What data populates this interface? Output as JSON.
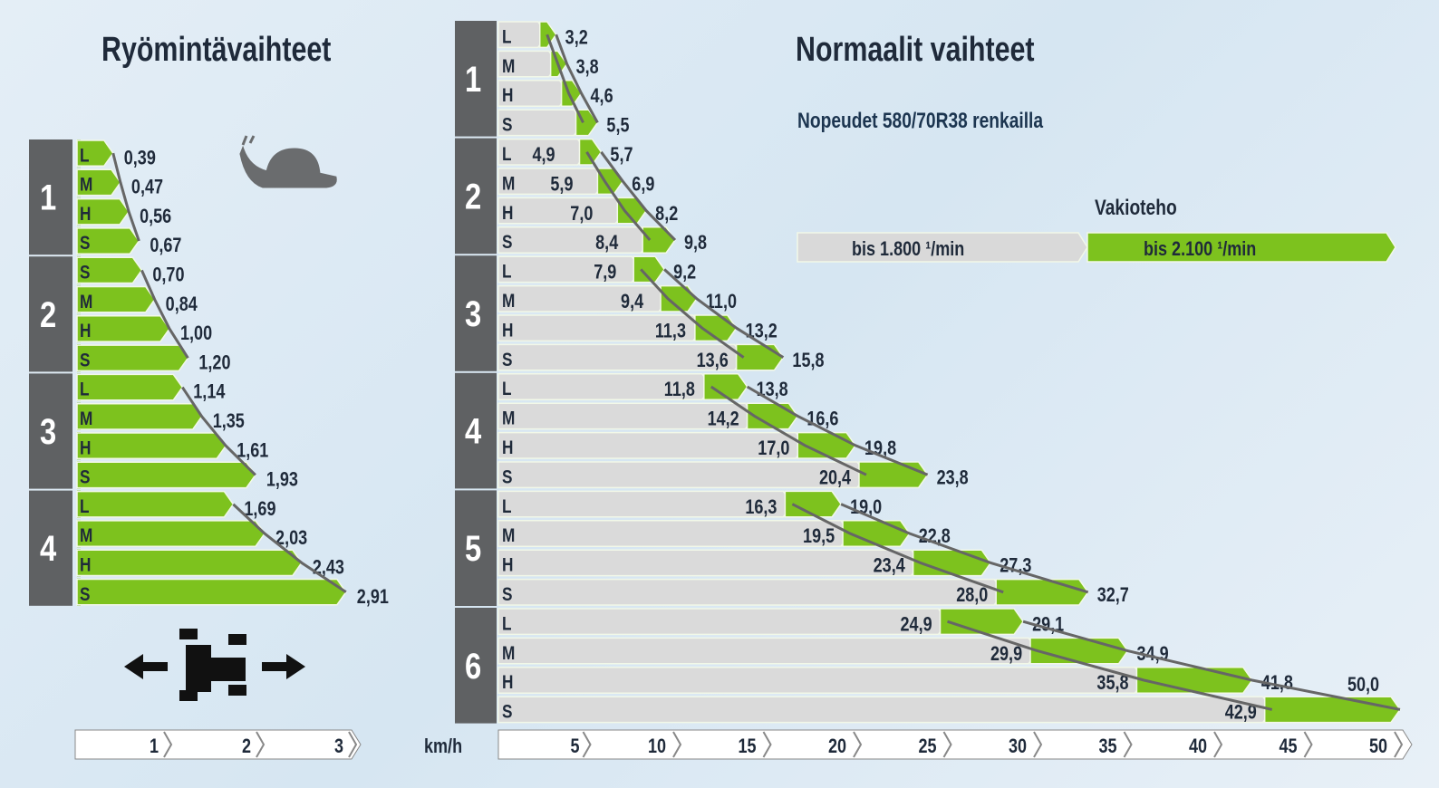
{
  "left_title": "Ryömintävaihteet",
  "right_title": "Normaalit vaihteet",
  "subtitle": "Nopeudet 580/70R38 renkailla",
  "legend": {
    "title": "Vakioteho",
    "items": [
      "bis 1.800 ¹/min",
      "bis 2.100 ¹/min"
    ],
    "colors": [
      "#d9d9d9",
      "#7dc21e"
    ]
  },
  "icons": [
    "snail-icon",
    "tractor-direction-icon"
  ],
  "chart_data": [
    {
      "type": "bar",
      "title": "Ryömintävaihteet",
      "groups": [
        "1",
        "2",
        "3",
        "4"
      ],
      "row_labels": [
        [
          "L",
          "M",
          "H",
          "S"
        ],
        [
          "S",
          "M",
          "H",
          "S"
        ],
        [
          "L",
          "M",
          "H",
          "S"
        ],
        [
          "L",
          "M",
          "H",
          "S"
        ]
      ],
      "values": [
        [
          0.39,
          0.47,
          0.56,
          0.67
        ],
        [
          0.7,
          0.84,
          1.0,
          1.2
        ],
        [
          1.14,
          1.35,
          1.61,
          1.93
        ],
        [
          1.69,
          2.03,
          2.43,
          2.91
        ]
      ],
      "labels": [
        [
          "0,39",
          "0,47",
          "0,56",
          "0,67"
        ],
        [
          "0,70",
          "0,84",
          "1,00",
          "1,20"
        ],
        [
          "1,14",
          "1,35",
          "1,61",
          "1,93"
        ],
        [
          "1,69",
          "2,03",
          "2,43",
          "2,91"
        ]
      ],
      "xticks": [
        "1",
        "2",
        "3"
      ],
      "xlim": [
        0,
        3
      ]
    },
    {
      "type": "bar",
      "title": "Normaalit vaihteet",
      "xlabel": "km/h",
      "groups": [
        "1",
        "2",
        "3",
        "4",
        "5",
        "6"
      ],
      "row_labels": [
        "L",
        "M",
        "H",
        "S"
      ],
      "series": [
        {
          "name": "bis 1.800 ¹/min",
          "values": [
            [
              2.7,
              3.3,
              3.9,
              4.7
            ],
            [
              4.9,
              5.9,
              7.0,
              8.4
            ],
            [
              7.9,
              9.4,
              11.3,
              13.6
            ],
            [
              11.8,
              14.2,
              17.0,
              20.4
            ],
            [
              16.3,
              19.5,
              23.4,
              28.0
            ],
            [
              24.9,
              29.9,
              35.8,
              42.9
            ]
          ],
          "labels": [
            [
              null,
              null,
              null,
              null
            ],
            [
              "4,9",
              "5,9",
              "7,0",
              "8,4"
            ],
            [
              "7,9",
              "9,4",
              "11,3",
              "13,6"
            ],
            [
              "11,8",
              "14,2",
              "17,0",
              "20,4"
            ],
            [
              "16,3",
              "19,5",
              "23,4",
              "28,0"
            ],
            [
              "24,9",
              "29,9",
              "35,8",
              "42,9"
            ]
          ]
        },
        {
          "name": "bis 2.100 ¹/min",
          "values": [
            [
              3.2,
              3.8,
              4.6,
              5.5
            ],
            [
              5.7,
              6.9,
              8.2,
              9.8
            ],
            [
              9.2,
              11.0,
              13.2,
              15.8
            ],
            [
              13.8,
              16.6,
              19.8,
              23.8
            ],
            [
              19.0,
              22.8,
              27.3,
              32.7
            ],
            [
              29.1,
              34.9,
              41.8,
              50.0
            ]
          ],
          "labels": [
            [
              "3,2",
              "3,8",
              "4,6",
              "5,5"
            ],
            [
              "5,7",
              "6,9",
              "8,2",
              "9,8"
            ],
            [
              "9,2",
              "11,0",
              "13,2",
              "15,8"
            ],
            [
              "13,8",
              "16,6",
              "19,8",
              "23,8"
            ],
            [
              "19,0",
              "22,8",
              "27,3",
              "32,7"
            ],
            [
              "29,1",
              "34,9",
              "41,8",
              "50,0"
            ]
          ]
        }
      ],
      "xticks": [
        "5",
        "10",
        "15",
        "20",
        "25",
        "30",
        "35",
        "40",
        "45",
        "50"
      ],
      "xlim": [
        0,
        50
      ]
    }
  ]
}
